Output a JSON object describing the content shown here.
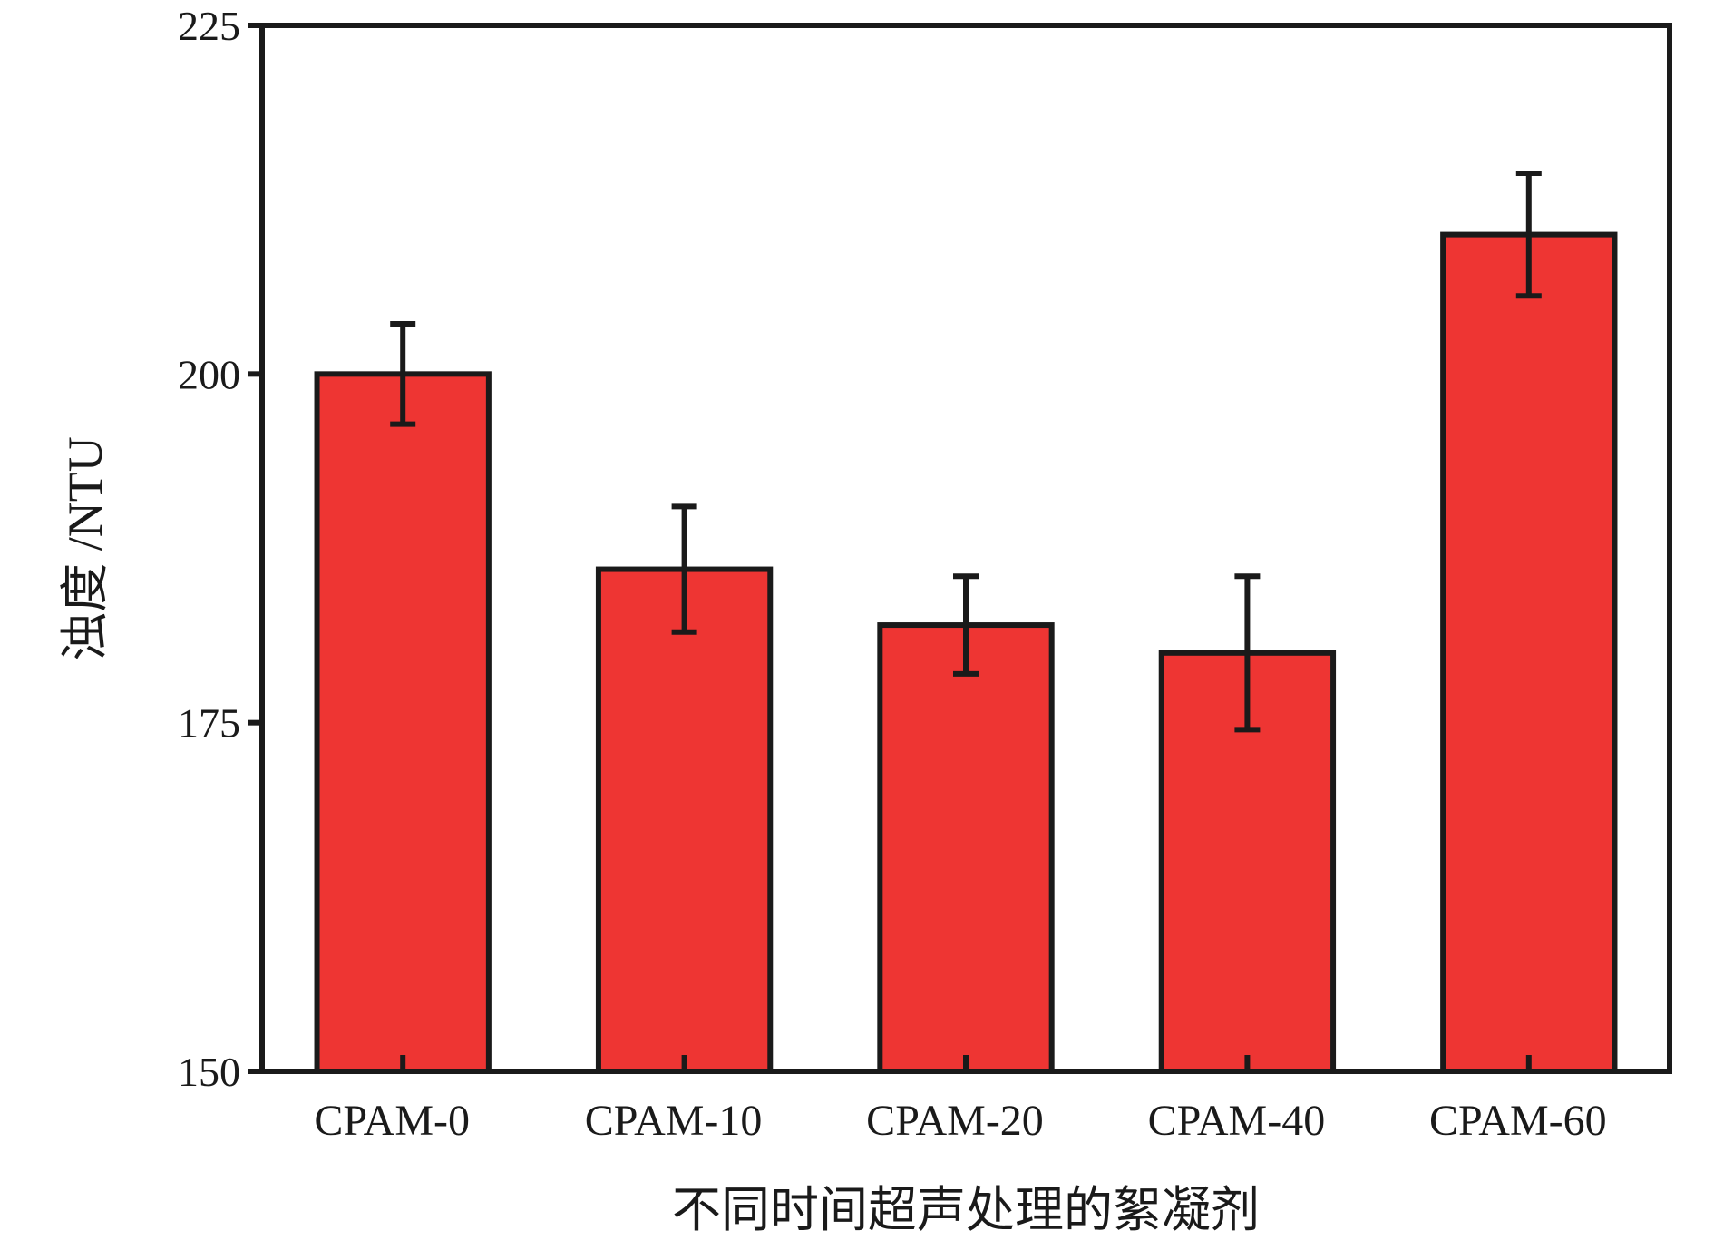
{
  "chart_data": {
    "type": "bar",
    "categories": [
      "CPAM-0",
      "CPAM-10",
      "CPAM-20",
      "CPAM-40",
      "CPAM-60"
    ],
    "values": [
      200.0,
      186.0,
      182.0,
      180.0,
      210.0
    ],
    "error_low": [
      196.4,
      181.5,
      178.5,
      174.5,
      205.6
    ],
    "error_high": [
      203.6,
      190.5,
      185.5,
      185.5,
      214.4
    ],
    "xlabel": "不同时间超声处理的絮凝剂",
    "ylabel": "浊度 /NTU",
    "ylim": [
      150,
      225
    ],
    "yticks": [
      150,
      175,
      200,
      225
    ],
    "ytick_labels": [
      "150",
      "175",
      "200",
      "225"
    ],
    "grid": false,
    "bar_color": "#ee3533",
    "edge_color": "#1a1a1a"
  }
}
